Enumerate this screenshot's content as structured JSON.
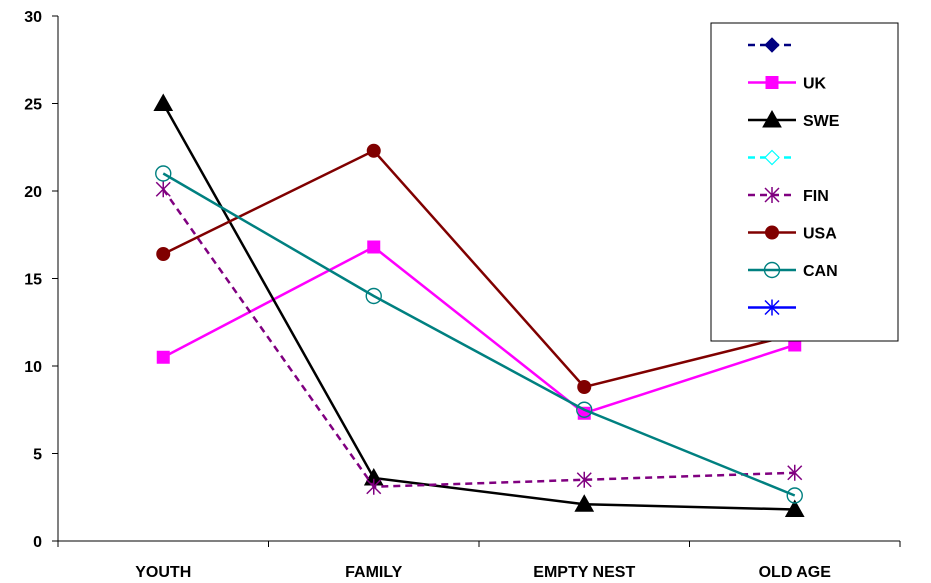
{
  "chart_data": {
    "type": "line",
    "title": "",
    "xlabel": "",
    "ylabel": "",
    "categories": [
      "YOUTH",
      "FAMILY",
      "EMPTY NEST",
      "OLD AGE"
    ],
    "ylim": [
      0,
      30
    ],
    "yticks": [
      0,
      5,
      10,
      15,
      20,
      25,
      30
    ],
    "grid": false,
    "legend_position": "top-right",
    "series": [
      {
        "name": "",
        "color": "#000080",
        "marker": "diamond-filled",
        "dash": "dash",
        "values": [
          null,
          null,
          null,
          null
        ]
      },
      {
        "name": "UK",
        "color": "#FF00FF",
        "marker": "square-filled",
        "dash": "solid",
        "values": [
          10.5,
          16.8,
          7.3,
          11.2
        ]
      },
      {
        "name": "SWE",
        "color": "#000000",
        "marker": "triangle-filled",
        "dash": "solid",
        "values": [
          25.0,
          3.6,
          2.1,
          1.8
        ]
      },
      {
        "name": "",
        "color": "#00FFFF",
        "marker": "diamond-open",
        "dash": "dash",
        "values": [
          null,
          null,
          null,
          null
        ]
      },
      {
        "name": "FIN",
        "color": "#800080",
        "marker": "star",
        "dash": "dash",
        "values": [
          20.1,
          3.1,
          3.5,
          3.9
        ]
      },
      {
        "name": "USA",
        "color": "#800000",
        "marker": "circle-filled",
        "dash": "solid",
        "values": [
          16.4,
          22.3,
          8.8,
          11.8
        ]
      },
      {
        "name": "CAN",
        "color": "#008080",
        "marker": "circle-open",
        "dash": "solid",
        "values": [
          21.0,
          14.0,
          7.5,
          2.6
        ]
      },
      {
        "name": "",
        "color": "#0000FF",
        "marker": "asterisk",
        "dash": "solid",
        "values": [
          null,
          null,
          null,
          null
        ]
      }
    ]
  }
}
